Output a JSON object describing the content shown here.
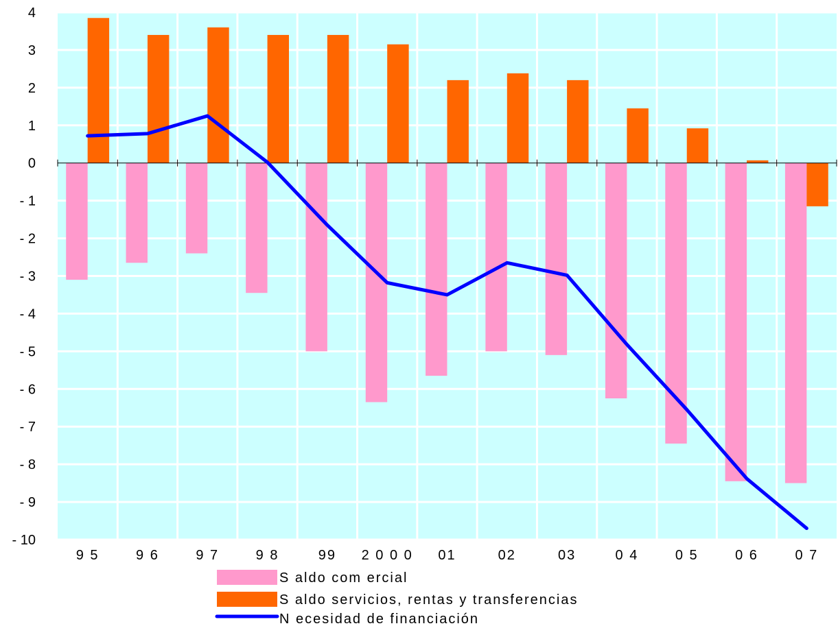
{
  "chart_data": {
    "type": "bar",
    "categories": [
      "9 5",
      "9 6",
      "9 7",
      "9 8",
      "99",
      "2 0 0 0",
      "01",
      "02",
      "03",
      "0 4",
      "0 5",
      "0 6",
      "0 7"
    ],
    "series": [
      {
        "name": "S aldo com ercial",
        "kind": "bar",
        "color": "#ff99cc",
        "values": [
          -3.1,
          -2.65,
          -2.4,
          -3.45,
          -5.0,
          -6.35,
          -5.65,
          -5.0,
          -5.1,
          -6.25,
          -7.45,
          -8.45,
          -8.5
        ]
      },
      {
        "name": "S aldo servicios, rentas y transferencias",
        "kind": "bar",
        "color": "#ff6600",
        "values": [
          3.85,
          3.4,
          3.6,
          3.4,
          3.4,
          3.15,
          2.2,
          2.38,
          2.2,
          1.45,
          0.92,
          0.07,
          -1.15
        ]
      },
      {
        "name": "N ecesidad de financiación",
        "kind": "line",
        "color": "#0000ff",
        "values": [
          0.72,
          0.78,
          1.25,
          0.02,
          -1.65,
          -3.18,
          -3.5,
          -2.65,
          -2.98,
          -4.82,
          -6.55,
          -8.38,
          -9.7
        ]
      }
    ],
    "y_ticks": [
      "4",
      "3",
      "2",
      "1",
      "0",
      "- 1",
      "- 2",
      "- 3",
      "- 4",
      "- 5",
      "- 6",
      "- 7",
      "- 8",
      "- 9",
      "- 10"
    ],
    "ylim": [
      -10,
      4
    ],
    "grid": true,
    "legend_position": "bottom",
    "colors": {
      "plot_background": "#ccffff",
      "grid": "#ffffff",
      "axis": "#000000"
    }
  }
}
